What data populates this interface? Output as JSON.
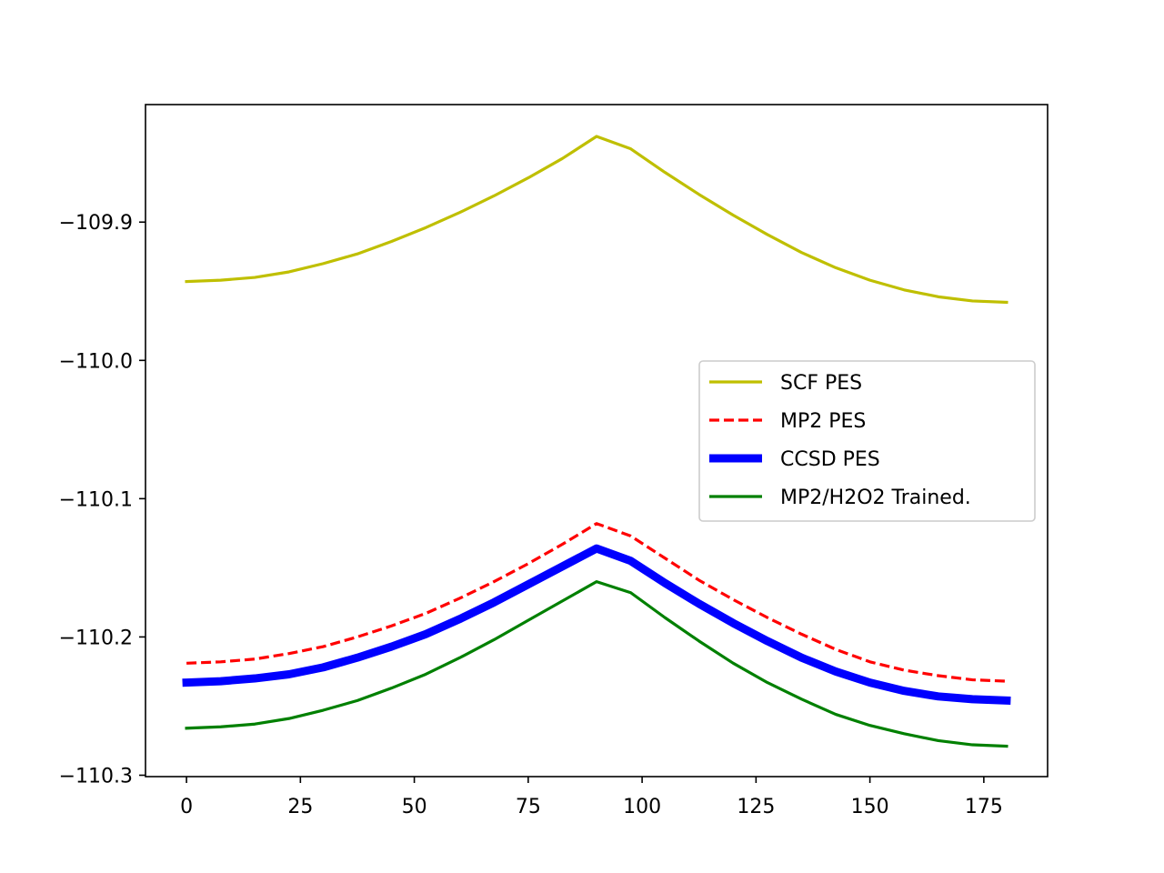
{
  "chart_data": {
    "type": "line",
    "title": "",
    "xlabel": "",
    "ylabel": "",
    "xlim": [
      -9,
      189
    ],
    "ylim": [
      -110.301,
      -109.815
    ],
    "grid": false,
    "legend_position": "center-right",
    "xticks": [
      0,
      25,
      50,
      75,
      100,
      125,
      150,
      175
    ],
    "xtick_labels": [
      "0",
      "25",
      "50",
      "75",
      "100",
      "125",
      "150",
      "175"
    ],
    "yticks": [
      -109.9,
      -110.0,
      -110.1,
      -110.2,
      -110.3
    ],
    "ytick_labels": [
      "−109.9",
      "−110.0",
      "−110.1",
      "−110.2",
      "−110.3"
    ],
    "x": [
      0,
      7.5,
      15,
      22.5,
      30,
      37.5,
      45,
      52.5,
      60,
      67.5,
      75,
      82.5,
      90,
      97.5,
      105,
      112.5,
      120,
      127.5,
      135,
      142.5,
      150,
      157.5,
      165,
      172.5,
      180
    ],
    "series": [
      {
        "name": "SCF PES",
        "color": "#bfbf00",
        "dash": "solid",
        "width": "normal",
        "values": [
          -109.943,
          -109.942,
          -109.94,
          -109.936,
          -109.93,
          -109.923,
          -109.914,
          -109.904,
          -109.893,
          -109.881,
          -109.868,
          -109.854,
          -109.838,
          -109.847,
          -109.864,
          -109.88,
          -109.895,
          -109.909,
          -109.922,
          -109.933,
          -109.942,
          -109.949,
          -109.954,
          -109.957,
          -109.958
        ]
      },
      {
        "name": "MP2 PES",
        "color": "#ff0000",
        "dash": "dashed",
        "width": "normal",
        "values": [
          -110.219,
          -110.218,
          -110.216,
          -110.212,
          -110.207,
          -110.2,
          -110.192,
          -110.183,
          -110.172,
          -110.16,
          -110.147,
          -110.133,
          -110.118,
          -110.127,
          -110.143,
          -110.159,
          -110.173,
          -110.186,
          -110.198,
          -110.209,
          -110.218,
          -110.224,
          -110.228,
          -110.231,
          -110.232
        ]
      },
      {
        "name": "CCSD PES",
        "color": "#0000ff",
        "dash": "solid",
        "width": "thick",
        "values": [
          -110.233,
          -110.232,
          -110.23,
          -110.227,
          -110.222,
          -110.215,
          -110.207,
          -110.198,
          -110.187,
          -110.175,
          -110.162,
          -110.149,
          -110.136,
          -110.145,
          -110.161,
          -110.176,
          -110.19,
          -110.203,
          -110.215,
          -110.225,
          -110.233,
          -110.239,
          -110.243,
          -110.245,
          -110.246
        ]
      },
      {
        "name": "MP2/H2O2 Trained.",
        "color": "#008000",
        "dash": "solid",
        "width": "normal",
        "values": [
          -110.266,
          -110.265,
          -110.263,
          -110.259,
          -110.253,
          -110.246,
          -110.237,
          -110.227,
          -110.215,
          -110.202,
          -110.188,
          -110.174,
          -110.16,
          -110.168,
          -110.186,
          -110.203,
          -110.219,
          -110.233,
          -110.245,
          -110.256,
          -110.264,
          -110.27,
          -110.275,
          -110.278,
          -110.279
        ]
      }
    ]
  }
}
